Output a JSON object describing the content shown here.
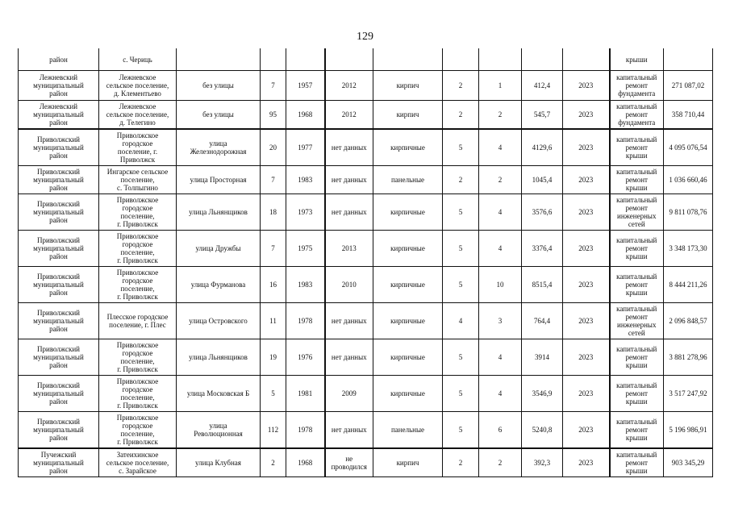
{
  "page_number": "129",
  "rows": [
    [
      "район",
      "с. Чериць",
      "",
      "",
      "",
      "",
      "",
      "",
      "",
      "",
      "",
      "крыши",
      ""
    ],
    [
      "Лежневский\nмуниципальный\nрайон",
      "Лежневское\nсельское поселение,\nд. Клементьево",
      "без улицы",
      "7",
      "1957",
      "2012",
      "кирпич",
      "2",
      "1",
      "412,4",
      "2023",
      "капитальный\nремонт\nфундамента",
      "271 087,02"
    ],
    [
      "Лежневский\nмуниципальный\nрайон",
      "Лежневское\nсельское поселение,\nд. Телегино",
      "без улицы",
      "95",
      "1968",
      "2012",
      "кирпич",
      "2",
      "2",
      "545,7",
      "2023",
      "капитальный\nремонт\nфундамента",
      "358 710,44"
    ],
    [
      "Приволжский\nмуниципальный\nрайон",
      "Приволжское\nгородское\nпоселение, г.\nПриволжск",
      "улица\nЖелезнодорожная",
      "20",
      "1977",
      "нет данных",
      "кирпичные",
      "5",
      "4",
      "4129,6",
      "2023",
      "капитальный\nремонт\nкрыши",
      "4 095 076,54"
    ],
    [
      "Приволжский\nмуниципальный\nрайон",
      "Ингарское сельское\nпоселение,\nс. Толпыгино",
      "улица Просторная",
      "7",
      "1983",
      "нет данных",
      "панельные",
      "2",
      "2",
      "1045,4",
      "2023",
      "капитальный\nремонт\nкрыши",
      "1 036 660,46"
    ],
    [
      "Приволжский\nмуниципальный\nрайон",
      "Приволжское\nгородское\nпоселение,\nг. Приволжск",
      "улица Льнянщиков",
      "18",
      "1973",
      "нет данных",
      "кирпичные",
      "5",
      "4",
      "3576,6",
      "2023",
      "капитальный\nремонт\nинженерных\nсетей",
      "9 811 078,76"
    ],
    [
      "Приволжский\nмуниципальный\nрайон",
      "Приволжское\nгородское\nпоселение,\nг. Приволжск",
      "улица Дружбы",
      "7",
      "1975",
      "2013",
      "кирпичные",
      "5",
      "4",
      "3376,4",
      "2023",
      "капитальный\nремонт\nкрыши",
      "3 348 173,30"
    ],
    [
      "Приволжский\nмуниципальный\nрайон",
      "Приволжское\nгородское\nпоселение,\nг. Приволжск",
      "улица Фурманова",
      "16",
      "1983",
      "2010",
      "кирпичные",
      "5",
      "10",
      "8515,4",
      "2023",
      "капитальный\nремонт\nкрыши",
      "8 444 211,26"
    ],
    [
      "Приволжский\nмуниципальный\nрайон",
      "Плесское городское\nпоселение, г. Плес",
      "улица Островского",
      "11",
      "1978",
      "нет данных",
      "кирпичные",
      "4",
      "3",
      "764,4",
      "2023",
      "капитальный\nремонт\nинженерных\nсетей",
      "2 096 848,57"
    ],
    [
      "Приволжский\nмуниципальный\nрайон",
      "Приволжское\nгородское\nпоселение,\nг. Приволжск",
      "улица Льнянщиков",
      "19",
      "1976",
      "нет данных",
      "кирпичные",
      "5",
      "4",
      "3914",
      "2023",
      "капитальный\nремонт\nкрыши",
      "3 881 278,96"
    ],
    [
      "Приволжский\nмуниципальный\nрайон",
      "Приволжское\nгородское\nпоселение,\nг. Приволжск",
      "улица Московская Б",
      "5",
      "1981",
      "2009",
      "кирпичные",
      "5",
      "4",
      "3546,9",
      "2023",
      "капитальный\nремонт\nкрыши",
      "3 517 247,92"
    ],
    [
      "Приволжский\nмуниципальный\nрайон",
      "Приволжское\nгородское\nпоселение,\nг. Приволжск",
      "улица\nРеволюционная",
      "112",
      "1978",
      "нет данных",
      "панельные",
      "5",
      "6",
      "5240,8",
      "2023",
      "капитальный\nремонт\nкрыши",
      "5 196 986,91"
    ],
    [
      "Пучежский\nмуниципальный\nрайон",
      "Затеихинское\nсельское поселение,\nс. Зарайское",
      "улица Клубная",
      "2",
      "1968",
      "не\nпроводился",
      "кирпич",
      "2",
      "2",
      "392,3",
      "2023",
      "капитальный\nремонт\nкрыши",
      "903 345,29"
    ]
  ]
}
